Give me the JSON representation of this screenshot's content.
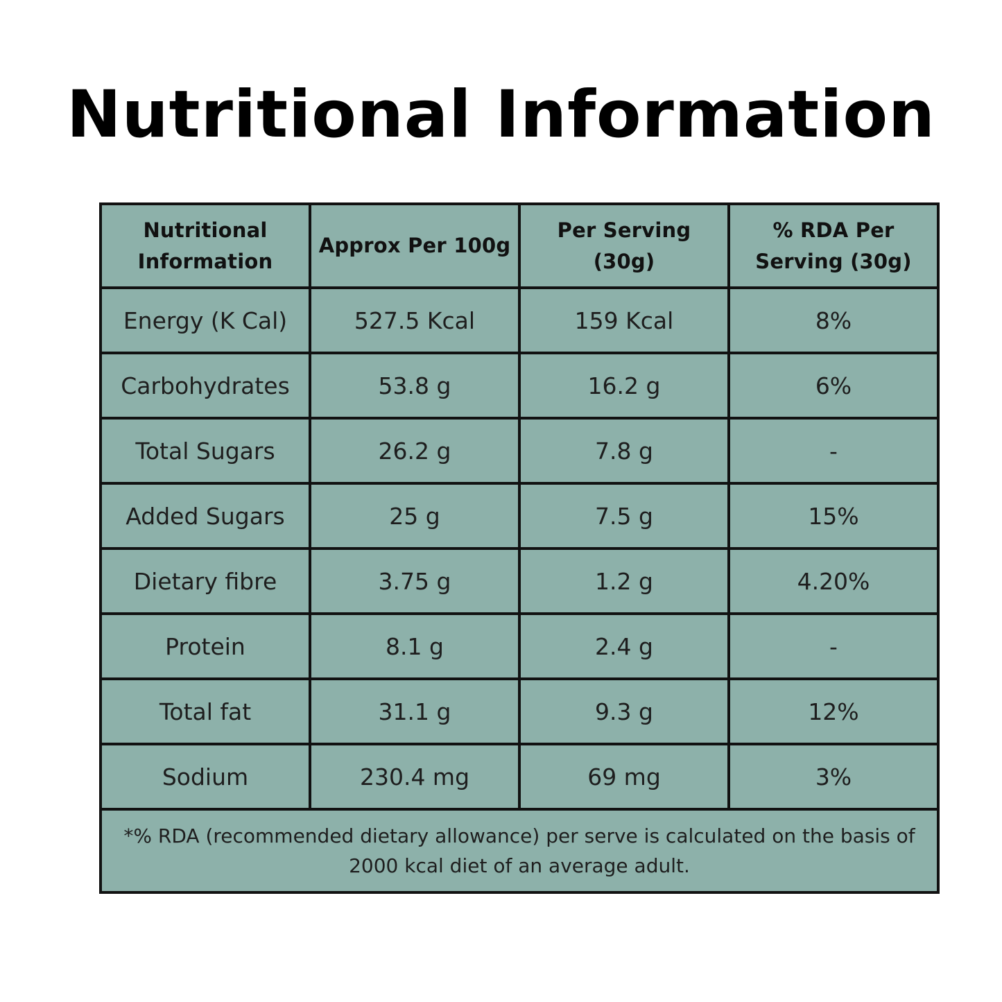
{
  "title": "Nutritional Information",
  "table": {
    "headers": [
      "Nutritional Information",
      "Approx Per 100g",
      "Per Serving (30g)",
      "% RDA Per Serving (30g)"
    ],
    "rows": [
      [
        "Energy (K Cal)",
        "527.5 Kcal",
        "159 Kcal",
        "8%"
      ],
      [
        "Carbohydrates",
        "53.8 g",
        "16.2 g",
        "6%"
      ],
      [
        "Total Sugars",
        "26.2 g",
        "7.8 g",
        "-"
      ],
      [
        "Added Sugars",
        "25 g",
        "7.5 g",
        "15%"
      ],
      [
        "Dietary fibre",
        "3.75 g",
        "1.2 g",
        "4.20%"
      ],
      [
        "Protein",
        "8.1 g",
        "2.4 g",
        "-"
      ],
      [
        "Total fat",
        "31.1 g",
        "9.3 g",
        "12%"
      ],
      [
        "Sodium",
        "230.4 mg",
        "69 mg",
        "3%"
      ]
    ],
    "footnote": "*% RDA (recommended dietary allowance) per serve is calculated on the basis of 2000 kcal diet of an average adult."
  },
  "colors": {
    "cell_background": "#8db1aa",
    "border": "#111111",
    "text": "#1e1e1e"
  }
}
